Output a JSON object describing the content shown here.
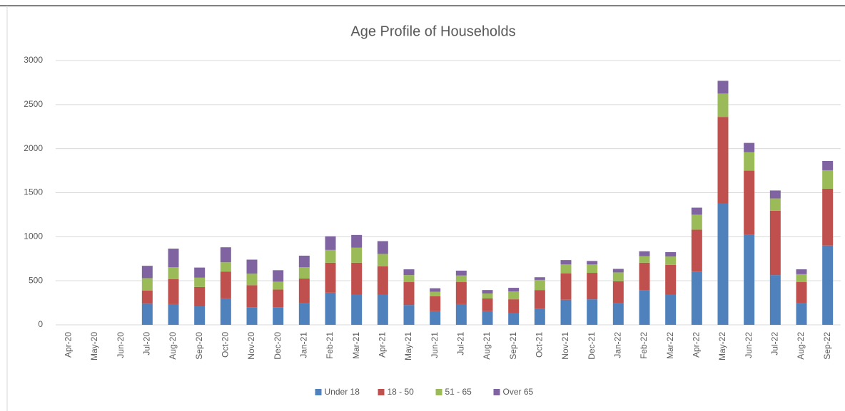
{
  "chart_data": {
    "type": "stacked_bar",
    "title": "Age Profile of Households",
    "categories": [
      "Apr-20",
      "May-20",
      "Jun-20",
      "Jul-20",
      "Aug-20",
      "Sep-20",
      "Oct-20",
      "Nov-20",
      "Dec-20",
      "Jan-21",
      "Feb-21",
      "Mar-21",
      "Apr-21",
      "May-21",
      "Jun-21",
      "Jul-21",
      "Aug-21",
      "Sep-21",
      "Oct-21",
      "Nov-21",
      "Dec-21",
      "Jan-22",
      "Feb-22",
      "Mar-22",
      "Apr-22",
      "May-22",
      "Jun-22",
      "Jul-22",
      "Aug-22",
      "Sep-22"
    ],
    "series": [
      {
        "name": "Under 18",
        "color": "#4f81bd",
        "values": [
          0,
          0,
          0,
          240,
          235,
          210,
          300,
          200,
          200,
          250,
          365,
          340,
          340,
          225,
          155,
          235,
          155,
          130,
          185,
          285,
          290,
          250,
          390,
          340,
          605,
          1375,
          1020,
          565,
          250,
          900
        ]
      },
      {
        "name": "18 - 50",
        "color": "#c0504d",
        "values": [
          0,
          0,
          0,
          150,
          285,
          220,
          305,
          250,
          200,
          275,
          340,
          365,
          325,
          260,
          170,
          250,
          145,
          160,
          210,
          300,
          300,
          245,
          315,
          340,
          475,
          985,
          730,
          730,
          235,
          645
        ]
      },
      {
        "name": "51 - 65",
        "color": "#9bbb59",
        "values": [
          0,
          0,
          0,
          140,
          135,
          105,
          105,
          130,
          90,
          130,
          145,
          170,
          140,
          80,
          50,
          75,
          55,
          90,
          115,
          100,
          95,
          100,
          75,
          95,
          170,
          265,
          210,
          140,
          90,
          210
        ]
      },
      {
        "name": "Over 65",
        "color": "#8064a2",
        "values": [
          0,
          0,
          0,
          140,
          210,
          115,
          170,
          160,
          130,
          130,
          155,
          145,
          145,
          65,
          40,
          55,
          40,
          40,
          30,
          50,
          40,
          40,
          55,
          50,
          80,
          145,
          105,
          90,
          55,
          105
        ]
      }
    ],
    "ylim": [
      0,
      3000
    ],
    "yticks": [
      0,
      500,
      1000,
      1500,
      2000,
      2500,
      3000
    ],
    "grid": true,
    "legend": "bottom"
  }
}
